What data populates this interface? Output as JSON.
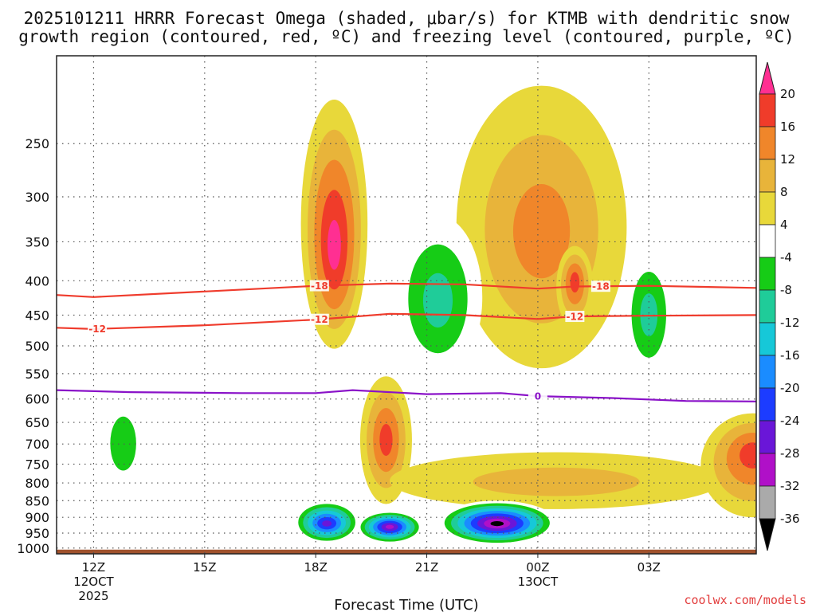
{
  "title": {
    "line1": "2025101211 HRRR Forecast Omega (shaded, μbar/s) for KTMB with dendritic snow",
    "line2": "growth region (contoured, red, ºC) and freezing level (contoured, purple, ºC)"
  },
  "xlabel": "Forecast Time (UTC)",
  "credit": "coolwx.com/models",
  "colors": {
    "red_contour": "#ef3b2c",
    "purple_contour": "#8a12c8",
    "ground": "#a0522d",
    "grid": "#555555"
  },
  "chart_data": {
    "type": "heatmap",
    "title": "2025101211 HRRR Forecast Omega (shaded, μbar/s) for KTMB with dendritic snow growth region (contoured, red, ºC) and freezing level (contoured, purple, ºC)",
    "xlabel": "Forecast Time (UTC)",
    "ylabel": "",
    "x_unit": "hours since 2025-10-12 11Z",
    "xlim": [
      0,
      18.9
    ],
    "ylim_hpa": [
      1020,
      185
    ],
    "y_scale": "log-pressure (inverted)",
    "x_ticks": [
      {
        "hour": 1,
        "label": "12Z",
        "sub1": "12OCT",
        "sub2": "2025"
      },
      {
        "hour": 4,
        "label": "15Z",
        "sub1": "",
        "sub2": ""
      },
      {
        "hour": 7,
        "label": "18Z",
        "sub1": "",
        "sub2": ""
      },
      {
        "hour": 10,
        "label": "21Z",
        "sub1": "",
        "sub2": ""
      },
      {
        "hour": 13,
        "label": "00Z",
        "sub1": "13OCT",
        "sub2": ""
      },
      {
        "hour": 16,
        "label": "03Z",
        "sub1": "",
        "sub2": ""
      }
    ],
    "y_ticks": [
      {
        "p": 250,
        "label": "250"
      },
      {
        "p": 300,
        "label": "300"
      },
      {
        "p": 350,
        "label": "350"
      },
      {
        "p": 400,
        "label": "400"
      },
      {
        "p": 450,
        "label": "450"
      },
      {
        "p": 500,
        "label": "500"
      },
      {
        "p": 550,
        "label": "550"
      },
      {
        "p": 600,
        "label": "600"
      },
      {
        "p": 650,
        "label": "650"
      },
      {
        "p": 700,
        "label": "700"
      },
      {
        "p": 750,
        "label": "750"
      },
      {
        "p": 800,
        "label": "800"
      },
      {
        "p": 850,
        "label": "850"
      },
      {
        "p": 900,
        "label": "900"
      },
      {
        "p": 950,
        "label": "950"
      },
      {
        "p": 1000,
        "label": "1000"
      }
    ],
    "colorbar": {
      "levels": [
        {
          "value": "20",
          "color": "#ff2f92"
        },
        {
          "value": "16",
          "color": "#f03c2a"
        },
        {
          "value": "12",
          "color": "#f0862a"
        },
        {
          "value": "8",
          "color": "#e8b43a"
        },
        {
          "value": "4",
          "color": "#e8d83a"
        },
        {
          "value": "-4",
          "color": "#ffffff"
        },
        {
          "value": "-8",
          "color": "#16cc16"
        },
        {
          "value": "-12",
          "color": "#1fcc99"
        },
        {
          "value": "-16",
          "color": "#16c8d8"
        },
        {
          "value": "-20",
          "color": "#1a8cff"
        },
        {
          "value": "-24",
          "color": "#1c3cff"
        },
        {
          "value": "-28",
          "color": "#6a16d8"
        },
        {
          "value": "-32",
          "color": "#b010c8"
        },
        {
          "value": "-36",
          "color": "#aaaaaa"
        }
      ],
      "top_color": "#ff2f92",
      "bottom_color": "#000000"
    },
    "omega_features": [
      {
        "name": "omega-updraft-upper-core",
        "type": "ellipse",
        "hour": 7.5,
        "p_center": 360,
        "p_top": 215,
        "p_bottom": 505,
        "half_width_h": 0.9,
        "peak": 20
      },
      {
        "name": "omega-upper-ridge-plume",
        "type": "ellipse",
        "hour": 13.1,
        "p_center": 340,
        "p_top": 205,
        "p_bottom": 540,
        "half_width_h": 2.3,
        "peak": 12
      },
      {
        "name": "omega-secondary-core",
        "type": "ellipse",
        "hour": 14.0,
        "p_center": 400,
        "p_top": 355,
        "p_bottom": 470,
        "half_width_h": 0.5,
        "peak": 16
      },
      {
        "name": "omega-lower-mid-plume",
        "type": "ellipse",
        "hour": 8.9,
        "p_center": 690,
        "p_top": 555,
        "p_bottom": 860,
        "half_width_h": 0.7,
        "peak": 16
      },
      {
        "name": "omega-lower-band",
        "type": "ellipse",
        "hour": 13.5,
        "p_center": 800,
        "p_top": 720,
        "p_bottom": 875,
        "half_width_h": 4.5,
        "peak": 8
      },
      {
        "name": "omega-east-edge-core",
        "type": "ellipse",
        "hour": 18.8,
        "p_center": 720,
        "p_top": 630,
        "p_bottom": 900,
        "half_width_h": 1.4,
        "peak": 16
      },
      {
        "name": "omega-descent-west",
        "type": "ellipse",
        "hour": 1.8,
        "p_center": 700,
        "p_top": 580,
        "p_bottom": 840,
        "half_width_h": 0.7,
        "peak": -8
      },
      {
        "name": "omega-descent-upper-mid",
        "type": "ellipse",
        "hour": 10.3,
        "p_center": 430,
        "p_top": 320,
        "p_bottom": 560,
        "half_width_h": 1.2,
        "peak": -12
      },
      {
        "name": "omega-descent-east-mid",
        "type": "ellipse",
        "hour": 16.0,
        "p_center": 450,
        "p_top": 360,
        "p_bottom": 560,
        "half_width_h": 0.7,
        "peak": -12
      },
      {
        "name": "omega-descent-low-1",
        "type": "ellipse",
        "hour": 7.3,
        "p_center": 920,
        "p_top": 850,
        "p_bottom": 985,
        "half_width_h": 0.9,
        "peak": -28
      },
      {
        "name": "omega-descent-low-2",
        "type": "ellipse",
        "hour": 9.0,
        "p_center": 930,
        "p_top": 880,
        "p_bottom": 985,
        "half_width_h": 0.9,
        "peak": -32
      },
      {
        "name": "omega-descent-low-3",
        "type": "ellipse",
        "hour": 11.9,
        "p_center": 920,
        "p_top": 850,
        "p_bottom": 990,
        "half_width_h": 1.6,
        "peak": -36
      }
    ],
    "series": [
      {
        "name": "-18 °C isotherm",
        "kind": "dgz",
        "label": "-18",
        "points": [
          [
            0,
            420
          ],
          [
            1,
            423
          ],
          [
            4,
            415
          ],
          [
            7,
            407
          ],
          [
            9,
            404
          ],
          [
            11,
            405
          ],
          [
            13,
            411
          ],
          [
            14,
            408
          ],
          [
            16,
            407
          ],
          [
            18.9,
            410
          ]
        ],
        "labels_at": [
          7.1,
          14.7
        ]
      },
      {
        "name": "-12 °C isotherm",
        "kind": "dgz",
        "label": "-12",
        "points": [
          [
            0,
            470
          ],
          [
            1,
            472
          ],
          [
            4,
            466
          ],
          [
            7,
            457
          ],
          [
            9,
            448
          ],
          [
            11,
            450
          ],
          [
            13,
            456
          ],
          [
            14,
            452
          ],
          [
            16,
            451
          ],
          [
            18.9,
            450
          ]
        ],
        "labels_at": [
          1.1,
          7.1,
          14.0
        ]
      },
      {
        "name": "0 °C freezing level",
        "kind": "freezing",
        "label": "0",
        "points": [
          [
            0,
            582
          ],
          [
            2,
            586
          ],
          [
            5,
            588
          ],
          [
            7,
            588
          ],
          [
            8,
            582
          ],
          [
            10,
            590
          ],
          [
            12,
            588
          ],
          [
            13,
            594
          ],
          [
            15,
            598
          ],
          [
            17,
            604
          ],
          [
            18.9,
            605
          ]
        ],
        "labels_at": [
          13.0
        ]
      }
    ]
  }
}
